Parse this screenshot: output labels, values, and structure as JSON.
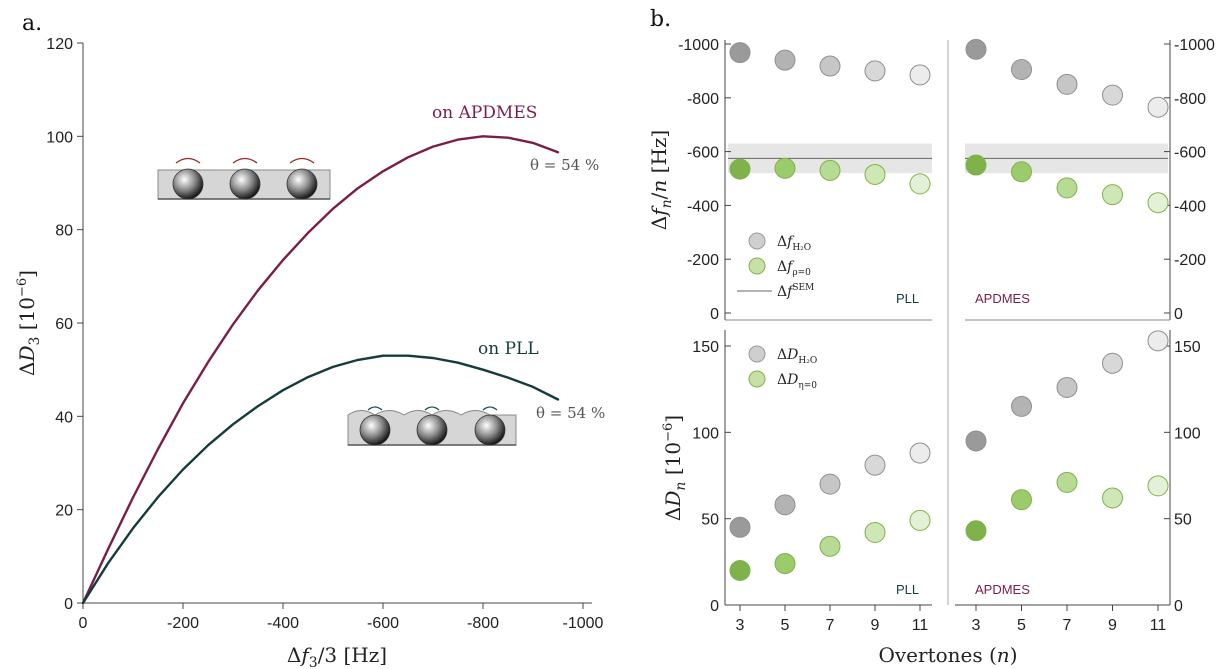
{
  "panel_a": {
    "label": "a."
  },
  "panel_b": {
    "label": "b."
  },
  "chart_data": [
    {
      "type": "line",
      "panel": "a.",
      "xlabel": "Δf3/3 [Hz]",
      "ylabel": "ΔD3 [10⁻⁶]",
      "xlim": [
        0,
        -1000
      ],
      "ylim": [
        0,
        120
      ],
      "x_ticks": [
        "0",
        "-200",
        "-400",
        "-600",
        "-800",
        "-1000"
      ],
      "y_ticks": [
        "0",
        "20",
        "40",
        "60",
        "80",
        "100",
        "120"
      ],
      "grid": false,
      "series": [
        {
          "name": "on APDMES",
          "color": "#7a1e48",
          "x": [
            0,
            -50,
            -100,
            -150,
            -200,
            -250,
            -300,
            -350,
            -400,
            -450,
            -500,
            -550,
            -600,
            -650,
            -700,
            -750,
            -800,
            -850,
            -900,
            -950
          ],
          "y": [
            0,
            11.5,
            22.6,
            33,
            42.8,
            51.6,
            59.7,
            67,
            73.5,
            79.3,
            84.5,
            88.9,
            92.5,
            95.5,
            97.8,
            99.3,
            100,
            99.7,
            98.6,
            96.6
          ]
        },
        {
          "name": "on PLL",
          "color": "#153c3c",
          "x": [
            0,
            -50,
            -100,
            -150,
            -200,
            -250,
            -300,
            -350,
            -400,
            -450,
            -500,
            -550,
            -600,
            -650,
            -700,
            -750,
            -800,
            -850,
            -900,
            -950
          ],
          "y": [
            0,
            8.5,
            16,
            22.7,
            28.6,
            33.8,
            38.3,
            42.2,
            45.6,
            48.4,
            50.6,
            52.1,
            53,
            53,
            52.5,
            51.5,
            50,
            48.3,
            46.3,
            43.6
          ]
        }
      ],
      "annotations": [
        "on APDMES",
        "on PLL",
        "θ = 54 %",
        "θ = 54 %"
      ]
    },
    {
      "type": "scatter",
      "panel": "b. top",
      "ylabel": "Δfn/n [Hz]",
      "ylim": [
        0,
        -1000
      ],
      "y_ticks": [
        "0",
        "-200",
        "-400",
        "-600",
        "-800",
        "-1000"
      ],
      "subpanels": [
        "PLL",
        "APDMES"
      ],
      "sem_line": -575,
      "sem_band": [
        -520,
        -630
      ],
      "legend": [
        "ΔfH₂O",
        "Δfρ=0",
        "ΔfSEM"
      ],
      "series": [
        {
          "name": "ΔfH₂O",
          "subpanel": "PLL",
          "x": [
            3,
            5,
            7,
            9,
            11
          ],
          "y": [
            -968,
            -940,
            -918,
            -900,
            -885
          ]
        },
        {
          "name": "Δfρ=0",
          "subpanel": "PLL",
          "x": [
            3,
            5,
            7,
            9,
            11
          ],
          "y": [
            -535,
            -538,
            -530,
            -515,
            -480
          ]
        },
        {
          "name": "ΔfH₂O",
          "subpanel": "APDMES",
          "x": [
            3,
            5,
            7,
            9,
            11
          ],
          "y": [
            -980,
            -905,
            -850,
            -810,
            -765
          ]
        },
        {
          "name": "Δfρ=0",
          "subpanel": "APDMES",
          "x": [
            3,
            5,
            7,
            9,
            11
          ],
          "y": [
            -550,
            -525,
            -465,
            -440,
            -410
          ]
        }
      ]
    },
    {
      "type": "scatter",
      "panel": "b. bottom",
      "xlabel": "Overtones (n)",
      "ylabel": "ΔDn [10⁻⁶]",
      "ylim": [
        0,
        160
      ],
      "y_ticks": [
        "0",
        "50",
        "100",
        "150"
      ],
      "x_ticks": [
        "3",
        "5",
        "7",
        "9",
        "11"
      ],
      "subpanels": [
        "PLL",
        "APDMES"
      ],
      "legend": [
        "ΔDH₂O",
        "ΔDη=0"
      ],
      "series": [
        {
          "name": "ΔDH₂O",
          "subpanel": "PLL",
          "x": [
            3,
            5,
            7,
            9,
            11
          ],
          "y": [
            45,
            58,
            70,
            81,
            88
          ]
        },
        {
          "name": "ΔDη=0",
          "subpanel": "PLL",
          "x": [
            3,
            5,
            7,
            9,
            11
          ],
          "y": [
            20,
            24,
            34,
            42,
            49
          ]
        },
        {
          "name": "ΔDH₂O",
          "subpanel": "APDMES",
          "x": [
            3,
            5,
            7,
            9,
            11
          ],
          "y": [
            95,
            115,
            126,
            140,
            153
          ]
        },
        {
          "name": "ΔDη=0",
          "subpanel": "APDMES",
          "x": [
            3,
            5,
            7,
            9,
            11
          ],
          "y": [
            43,
            61,
            71,
            62,
            69
          ]
        }
      ]
    }
  ],
  "colors": {
    "apdmes": "#7a1e48",
    "pll": "#153c3c",
    "band": "#e6e6e6"
  }
}
